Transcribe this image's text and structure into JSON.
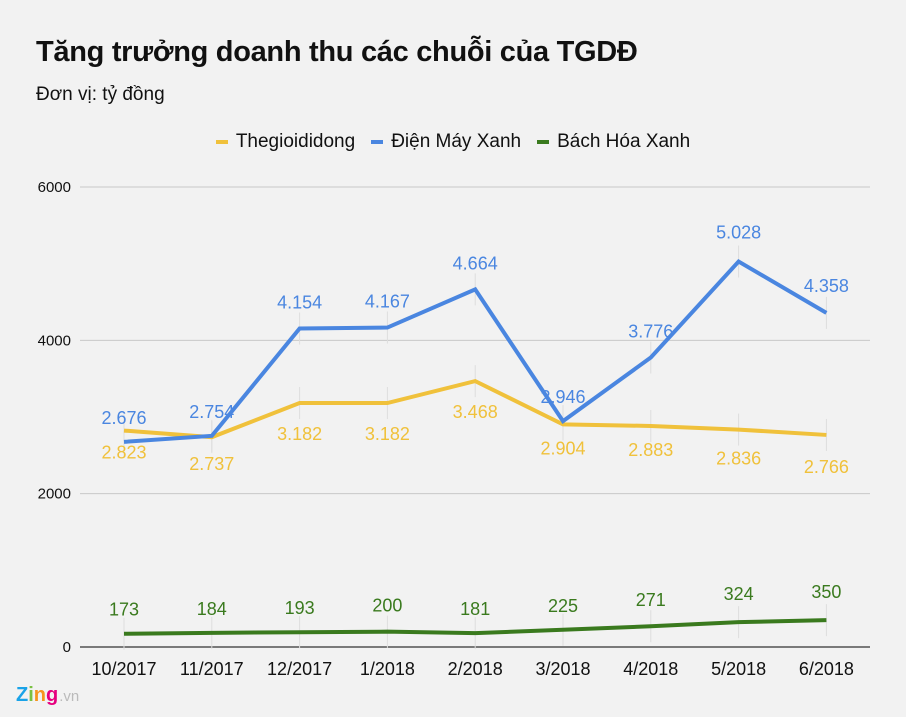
{
  "header": {
    "title": "Tăng trưởng doanh thu các chuỗi của TGDĐ",
    "subtitle": "Đơn vị: tỷ đồng"
  },
  "legend": [
    {
      "label": "Thegioididong",
      "color": "#f0c13b"
    },
    {
      "label": "Điện Máy Xanh",
      "color": "#4a86e0"
    },
    {
      "label": "Bách Hóa Xanh",
      "color": "#3a7a1e"
    }
  ],
  "logo": {
    "brand": "Zing",
    "suffix": ".vn"
  },
  "chart_data": {
    "type": "line",
    "title": "Tăng trưởng doanh thu các chuỗi của TGDĐ",
    "subtitle": "Đơn vị: tỷ đồng",
    "xlabel": "",
    "ylabel": "",
    "categories": [
      "10/2017",
      "11/2017",
      "12/2017",
      "1/2018",
      "2/2018",
      "3/2018",
      "4/2018",
      "5/2018",
      "6/2018"
    ],
    "yticks": [
      0,
      2000,
      4000,
      6000
    ],
    "ylim": [
      0,
      6000
    ],
    "grid": true,
    "legend_position": "top",
    "series": [
      {
        "name": "Thegioididong",
        "color": "#f0c13b",
        "values": [
          2823,
          2737,
          3182,
          3182,
          3468,
          2904,
          2883,
          2836,
          2766
        ],
        "labels": [
          "2.823",
          "2.737",
          "3.182",
          "3.182",
          "3.468",
          "2.904",
          "2.883",
          "2.836",
          "2.766"
        ]
      },
      {
        "name": "Điện Máy Xanh",
        "color": "#4a86e0",
        "values": [
          2676,
          2754,
          4154,
          4167,
          4664,
          2946,
          3776,
          5028,
          4358
        ],
        "labels": [
          "2.676",
          "2.754",
          "4.154",
          "4.167",
          "4.664",
          "2.946",
          "3.776",
          "5.028",
          "4.358"
        ]
      },
      {
        "name": "Bách Hóa Xanh",
        "color": "#3a7a1e",
        "values": [
          173,
          184,
          193,
          200,
          181,
          225,
          271,
          324,
          350
        ],
        "labels": [
          "173",
          "184",
          "193",
          "200",
          "181",
          "225",
          "271",
          "324",
          "350"
        ]
      }
    ]
  }
}
